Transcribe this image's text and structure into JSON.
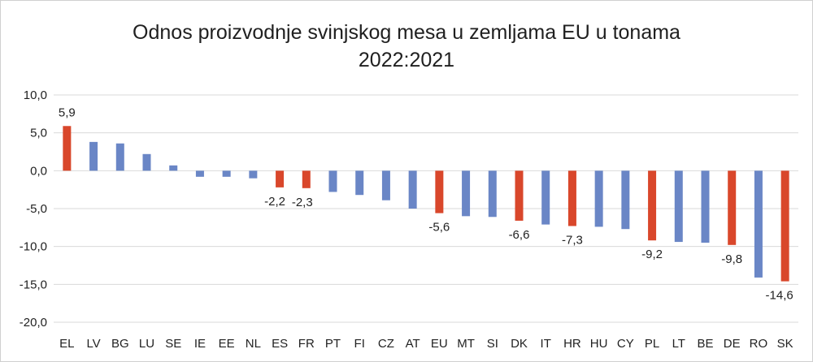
{
  "chart_data": {
    "type": "bar",
    "title": "Odnos proizvodnje svinjskog mesa u zemljama EU u tonama",
    "subtitle": "2022:2021",
    "xlabel": "",
    "ylabel": "",
    "ylim": [
      -20,
      10
    ],
    "yticks": [
      "10,0",
      "5,0",
      "0,0",
      "-5,0",
      "-10,0",
      "-15,0",
      "-20,0"
    ],
    "ytick_values": [
      10,
      5,
      0,
      -5,
      -10,
      -15,
      -20
    ],
    "grid": true,
    "legend": "none",
    "colors": {
      "default": "#6a86c6",
      "highlight": "#d9472b"
    },
    "categories": [
      "EL",
      "LV",
      "BG",
      "LU",
      "SE",
      "IE",
      "EE",
      "NL",
      "ES",
      "FR",
      "PT",
      "FI",
      "CZ",
      "AT",
      "EU",
      "MT",
      "SI",
      "DK",
      "IT",
      "HR",
      "HU",
      "CY",
      "PL",
      "LT",
      "BE",
      "DE",
      "RO",
      "SK"
    ],
    "values": [
      5.9,
      3.8,
      3.6,
      2.2,
      0.7,
      -0.8,
      -0.8,
      -1.0,
      -2.2,
      -2.3,
      -2.8,
      -3.2,
      -3.9,
      -5.0,
      -5.6,
      -6.0,
      -6.1,
      -6.6,
      -7.1,
      -7.3,
      -7.4,
      -7.7,
      -9.2,
      -9.4,
      -9.5,
      -9.8,
      -14.1,
      -14.6
    ],
    "highlight": [
      true,
      false,
      false,
      false,
      false,
      false,
      false,
      false,
      true,
      true,
      false,
      false,
      false,
      false,
      true,
      false,
      false,
      true,
      false,
      true,
      false,
      false,
      true,
      false,
      false,
      true,
      false,
      true
    ],
    "data_labels": [
      "5,9",
      null,
      null,
      null,
      null,
      null,
      null,
      null,
      "-2,2",
      "-2,3",
      null,
      null,
      null,
      null,
      "-5,6",
      null,
      null,
      "-6,6",
      null,
      "-7,3",
      null,
      null,
      "-9,2",
      null,
      null,
      "-9,8",
      null,
      "-14,6"
    ]
  }
}
